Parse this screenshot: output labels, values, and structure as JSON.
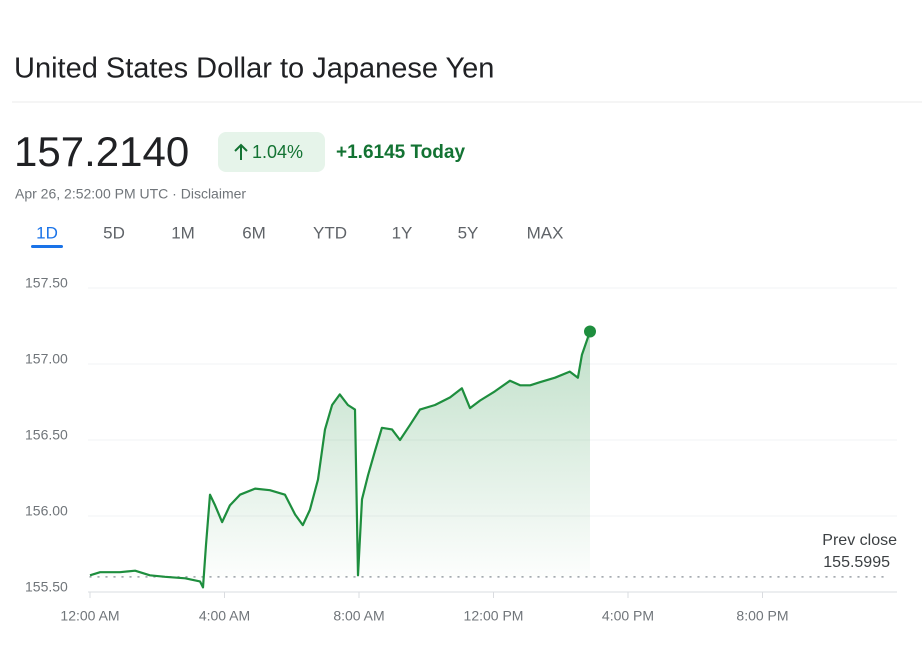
{
  "header": {
    "title": "United States Dollar to Japanese Yen",
    "price": "157.2140",
    "change_percent": "1.04%",
    "change_today": "+1.6145 Today",
    "timestamp": "Apr 26, 2:52:00 PM UTC · Disclaimer"
  },
  "tabs": {
    "labels": [
      "1D",
      "5D",
      "1M",
      "6M",
      "YTD",
      "1Y",
      "5Y",
      "MAX"
    ],
    "active": 0
  },
  "chart_data": {
    "type": "line",
    "color": "#1e8e3e",
    "grid": true,
    "x": [
      0,
      0.3,
      0.89,
      1.34,
      1.78,
      2.23,
      2.83,
      3.27,
      3.36,
      3.45,
      3.57,
      3.72,
      3.93,
      4.16,
      4.46,
      4.91,
      5.35,
      5.8,
      6.1,
      6.33,
      6.54,
      6.78,
      6.99,
      7.2,
      7.43,
      7.67,
      7.88,
      7.97,
      8.09,
      8.27,
      8.48,
      8.68,
      8.98,
      9.22,
      9.52,
      9.81,
      10.26,
      10.71,
      11.06,
      11.3,
      11.6,
      12.04,
      12.49,
      12.79,
      13.09,
      13.38,
      13.83,
      14.27,
      14.51,
      14.63,
      14.87
    ],
    "values": [
      155.61,
      155.63,
      155.63,
      155.64,
      155.61,
      155.6,
      155.59,
      155.57,
      155.53,
      155.81,
      156.14,
      156.07,
      155.96,
      156.07,
      156.14,
      156.18,
      156.17,
      156.14,
      156.01,
      155.94,
      156.04,
      156.24,
      156.57,
      156.73,
      156.8,
      156.73,
      156.7,
      155.61,
      156.11,
      156.27,
      156.43,
      156.58,
      156.57,
      156.5,
      156.6,
      156.7,
      156.73,
      156.78,
      156.84,
      156.71,
      156.76,
      156.82,
      156.89,
      156.86,
      156.86,
      156.88,
      156.91,
      156.95,
      156.91,
      157.06,
      157.214
    ],
    "xlim": [
      0,
      24
    ],
    "xticks": [
      {
        "value": 0,
        "label": "12:00 AM"
      },
      {
        "value": 4,
        "label": "4:00 AM"
      },
      {
        "value": 8,
        "label": "8:00 AM"
      },
      {
        "value": 12,
        "label": "12:00 PM"
      },
      {
        "value": 16,
        "label": "4:00 PM"
      },
      {
        "value": 20,
        "label": "8:00 PM"
      }
    ],
    "ylim": [
      155.5,
      157.5
    ],
    "yticks": [
      {
        "value": 155.5,
        "label": "155.50"
      },
      {
        "value": 156,
        "label": "156.00"
      },
      {
        "value": 156.5,
        "label": "156.50"
      },
      {
        "value": 157,
        "label": "157.00"
      },
      {
        "value": 157.5,
        "label": "157.50"
      }
    ],
    "reference_line": {
      "label": "Prev close",
      "value": 155.5995
    }
  }
}
